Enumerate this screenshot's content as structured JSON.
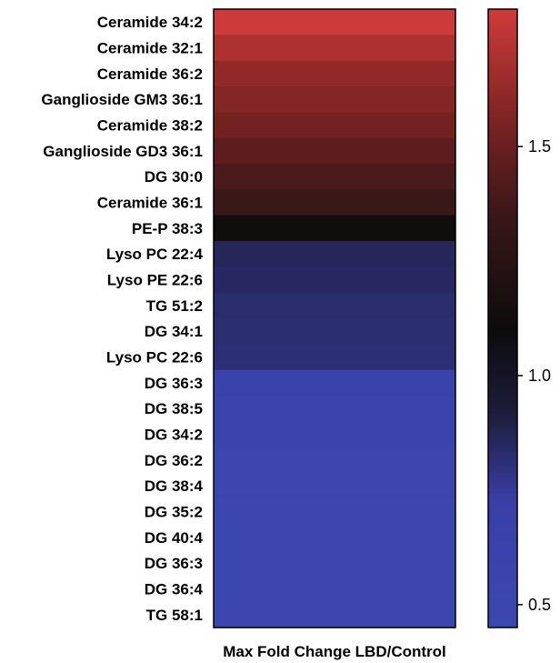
{
  "chart_data": {
    "type": "heatmap",
    "title": "",
    "xlabel": "Max Fold Change LBD/Control",
    "categories": [
      "Ceramide 34:2",
      "Ceramide 32:1",
      "Ceramide 36:2",
      "Ganglioside GM3 36:1",
      "Ceramide 38:2",
      "Ganglioside GD3 36:1",
      "DG 30:0",
      "Ceramide 36:1",
      "PE-P 38:3",
      "Lyso PC 22:4",
      "Lyso PE 22:6",
      "TG 51:2",
      "DG 34:1",
      "Lyso PC 22:6",
      "DG 36:3",
      "DG 38:5",
      "DG 34:2",
      "DG 36:2",
      "DG 38:4",
      "DG 35:2",
      "DG 40:4",
      "DG 36:3",
      "DG 36:4",
      "TG 58:1"
    ],
    "values": [
      1.79,
      1.7,
      1.62,
      1.58,
      1.53,
      1.46,
      1.4,
      1.35,
      1.12,
      0.86,
      0.85,
      0.83,
      0.82,
      0.81,
      0.61,
      0.58,
      0.56,
      0.55,
      0.54,
      0.52,
      0.51,
      0.5,
      0.49,
      0.47
    ],
    "colorbar": {
      "range": [
        0.45,
        1.8
      ],
      "ticks": [
        0.5,
        1.0,
        1.5
      ],
      "tick_labels": [
        "0.5",
        "1.0",
        "1.5"
      ],
      "stops": [
        {
          "value": 0.45,
          "color": "#3b48b0"
        },
        {
          "value": 0.72,
          "color": "#3a3fa8"
        },
        {
          "value": 0.92,
          "color": "#1c1c3a"
        },
        {
          "value": 1.1,
          "color": "#0c0c0c"
        },
        {
          "value": 1.35,
          "color": "#3a1718"
        },
        {
          "value": 1.55,
          "color": "#7a2223"
        },
        {
          "value": 1.8,
          "color": "#cf3b3a"
        }
      ]
    }
  }
}
